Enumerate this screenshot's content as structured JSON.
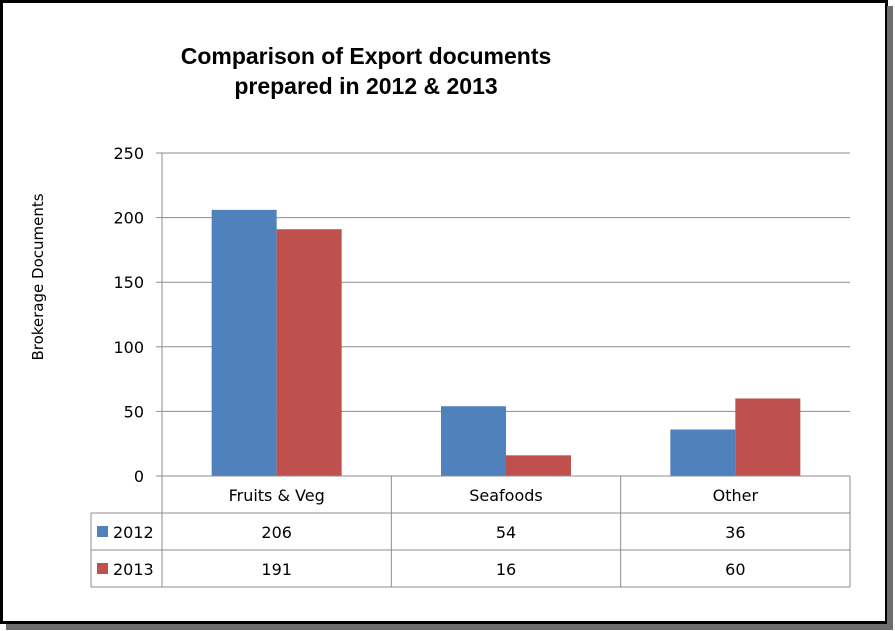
{
  "chart_data": {
    "type": "bar",
    "title_lines": [
      "Comparison of Export documents",
      "prepared in 2012 & 2013"
    ],
    "ylabel": "Brokerage Documents",
    "ylim": [
      0,
      250
    ],
    "yticks": [
      0,
      50,
      100,
      150,
      200,
      250
    ],
    "grid": true,
    "legend": "data-table",
    "categories": [
      "Fruits & Veg",
      "Seafoods",
      "Other"
    ],
    "series": [
      {
        "name": "2012",
        "color": "#4F81BD",
        "values": [
          206,
          54,
          36
        ]
      },
      {
        "name": "2013",
        "color": "#C0504D",
        "values": [
          191,
          16,
          60
        ]
      }
    ]
  }
}
